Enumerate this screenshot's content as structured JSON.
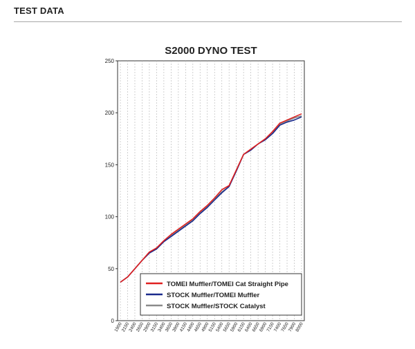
{
  "section": {
    "title": "TEST DATA"
  },
  "chart_data": {
    "type": "line",
    "title": "S2000  DYNO TEST",
    "xlabel": "",
    "ylabel": "",
    "ylim": [
      0,
      250
    ],
    "yticks": [
      0,
      50,
      100,
      150,
      200,
      250
    ],
    "grid": true,
    "legend_position": "bottom-right",
    "x": [
      1900,
      2150,
      2400,
      2650,
      2900,
      3150,
      3400,
      3650,
      3900,
      4150,
      4400,
      4650,
      4900,
      5150,
      5400,
      5650,
      5900,
      6150,
      6400,
      6650,
      6900,
      7150,
      7400,
      7650,
      7900,
      8000
    ],
    "xtick_labels": [
      "1900",
      "2150",
      "2400",
      "2650",
      "2900",
      "3150",
      "3400",
      "3650",
      "3900",
      "4150",
      "4400",
      "4650",
      "4900",
      "5150",
      "5400",
      "5650",
      "5900",
      "6150",
      "6400",
      "6650",
      "6900",
      "7150",
      "7400",
      "7650",
      "7900",
      "8000"
    ],
    "series": [
      {
        "name": "TOMEI Muffler/TOMEI Cat Straight Pipe",
        "color": "#e02020",
        "values": [
          37,
          42,
          50,
          58,
          66,
          70,
          77,
          83,
          88,
          93,
          98,
          105,
          111,
          118,
          126,
          130,
          145,
          160,
          165,
          170,
          175,
          182,
          190,
          193,
          196,
          199
        ]
      },
      {
        "name": "STOCK Muffler/TOMEI Muffler",
        "color": "#1a2a8c",
        "values": [
          37,
          42,
          50,
          58,
          65,
          69,
          76,
          81,
          86,
          91,
          96,
          103,
          109,
          116,
          123,
          129,
          144,
          160,
          164,
          170,
          174,
          180,
          188,
          191,
          193,
          196
        ]
      },
      {
        "name": "STOCK Muffler/STOCK Catalyst",
        "color": "#8a8a8a",
        "values": [
          37,
          42,
          50,
          58,
          65,
          69,
          76,
          82,
          87,
          92,
          97,
          104,
          110,
          117,
          124,
          129,
          145,
          160,
          164,
          170,
          175,
          181,
          189,
          192,
          195,
          197
        ]
      }
    ]
  }
}
